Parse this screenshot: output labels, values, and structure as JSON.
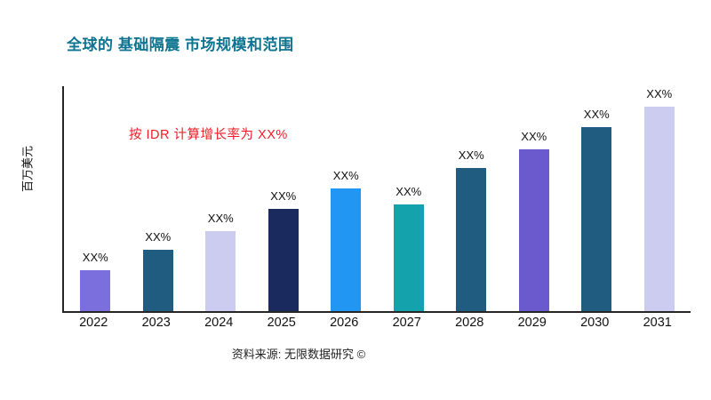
{
  "chart_data": {
    "type": "bar",
    "title": "全球的 基础隔震 市场规模和范围",
    "ylabel": "百万美元",
    "annotation": "按 IDR 计算增长率为 XX%",
    "source": "资料来源: 无限数据研究 ©",
    "categories": [
      "2022",
      "2023",
      "2024",
      "2025",
      "2026",
      "2027",
      "2028",
      "2029",
      "2030",
      "2031"
    ],
    "values": [
      20,
      30,
      39,
      50,
      60,
      52,
      70,
      79,
      90,
      100
    ],
    "bar_labels": [
      "XX%",
      "XX%",
      "XX%",
      "XX%",
      "XX%",
      "XX%",
      "XX%",
      "XX%",
      "XX%",
      "XX%"
    ],
    "bar_colors": [
      "#7B6FDE",
      "#1F5C7F",
      "#CBCCEF",
      "#1B2A5E",
      "#2196F3",
      "#14A3AC",
      "#1F5C7F",
      "#6A5ACD",
      "#1F5C7F",
      "#CBCCEF"
    ],
    "title_color": "#0E7490",
    "annotation_color": "#ED1C24",
    "axis_color": "#262626",
    "ylim": [
      0,
      110
    ],
    "legend": "none",
    "grid": false
  }
}
